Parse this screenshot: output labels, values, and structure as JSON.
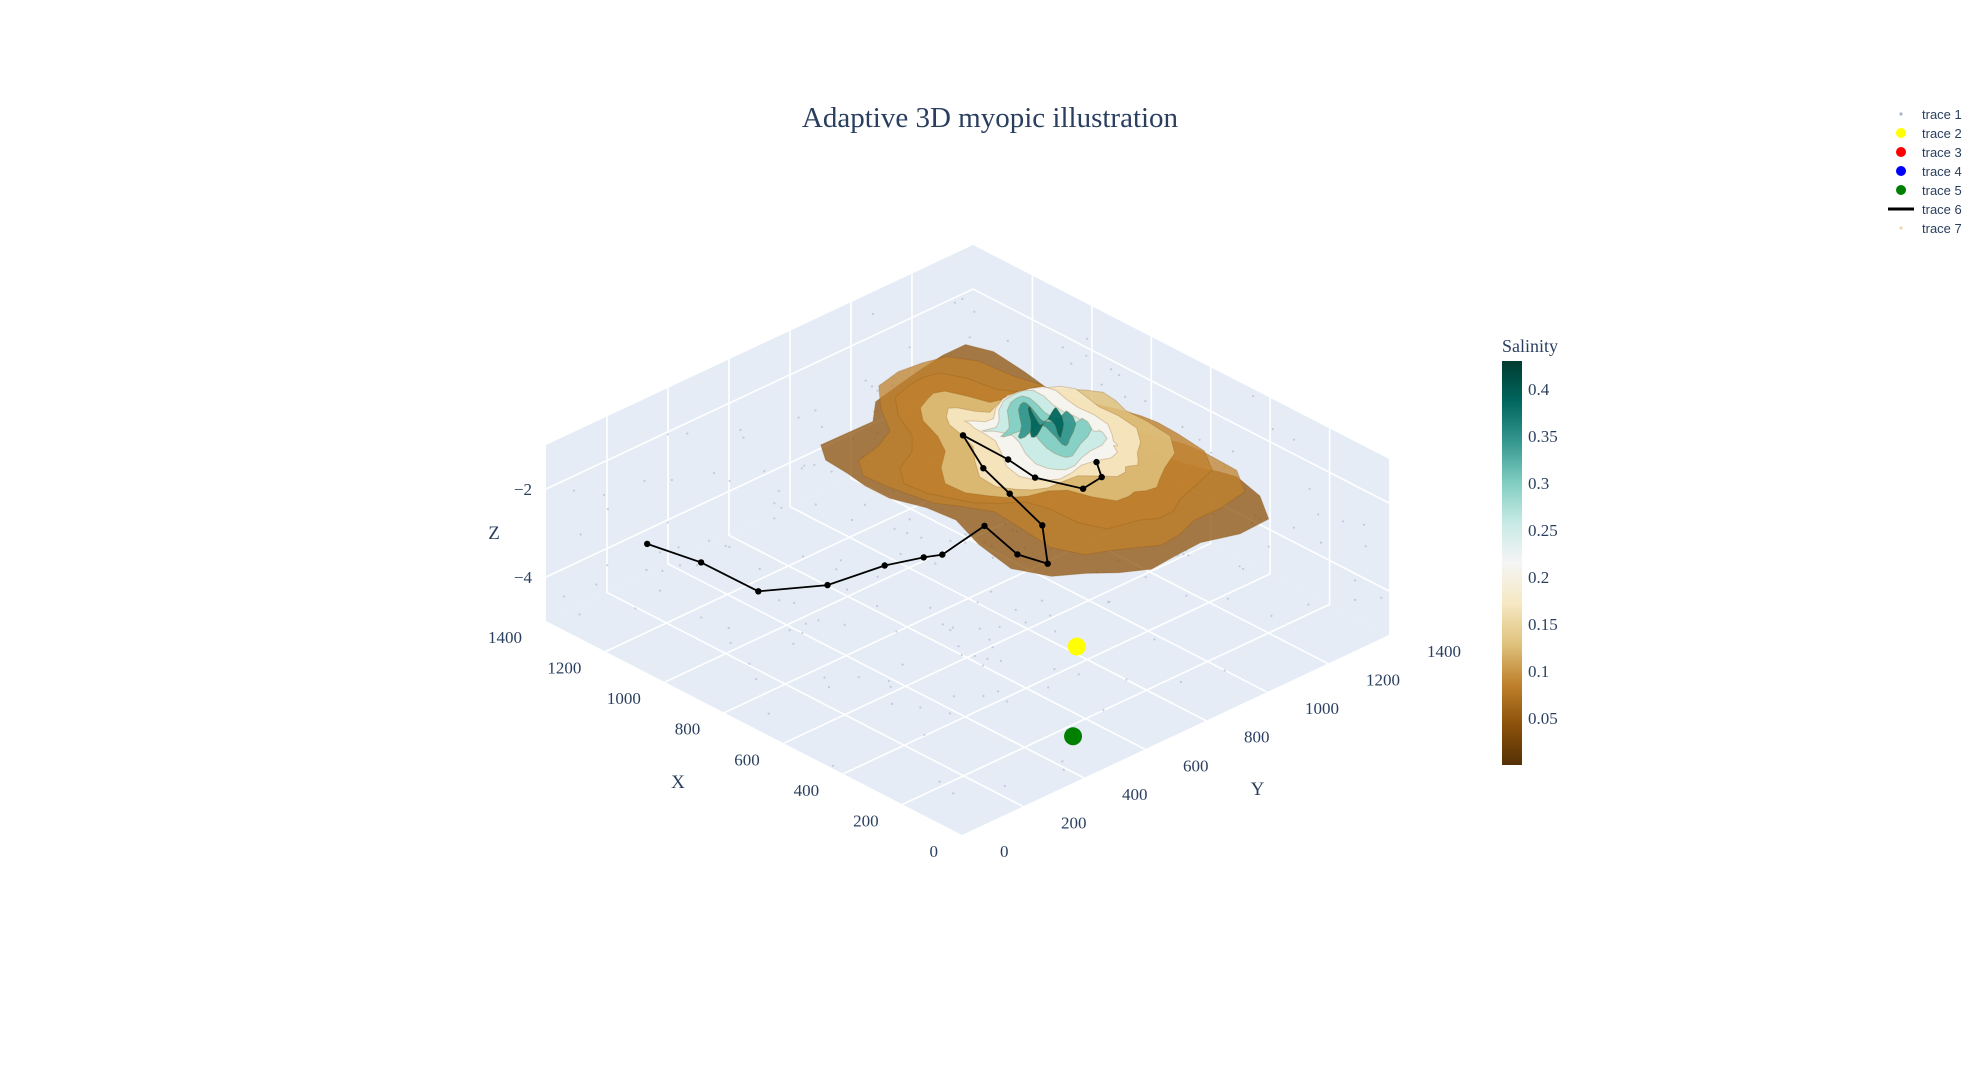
{
  "chart_data": {
    "type": "scatter3d",
    "title": "Adaptive 3D myopic illustration",
    "axes": {
      "x": {
        "label": "X",
        "ticks": [
          "0",
          "200",
          "400",
          "600",
          "800",
          "1000",
          "1200",
          "1400"
        ],
        "range": [
          0,
          1400
        ]
      },
      "y": {
        "label": "Y",
        "ticks": [
          "0",
          "200",
          "400",
          "600",
          "800",
          "1000",
          "1200",
          "1400"
        ],
        "range": [
          0,
          1400
        ]
      },
      "z": {
        "label": "Z",
        "ticks": [
          "−4",
          "−2"
        ],
        "range": [
          -5,
          -1
        ]
      }
    },
    "colorbar": {
      "title": "Salinity",
      "ticks": [
        "0.05",
        "0.1",
        "0.15",
        "0.2",
        "0.25",
        "0.3",
        "0.35",
        "0.4"
      ],
      "range": [
        0,
        0.43
      ],
      "colors": [
        "#543005",
        "#8c510a",
        "#bf812d",
        "#dfc27d",
        "#f6e8c3",
        "#f5f5f5",
        "#c7eae5",
        "#80cdc1",
        "#35978f",
        "#01665e",
        "#003c30"
      ]
    },
    "legend": {
      "position": "top-right",
      "items": [
        {
          "name": "trace 1",
          "symbol": "dot",
          "color": "#aab4c8"
        },
        {
          "name": "trace 2",
          "symbol": "marker",
          "color": "#ffff00"
        },
        {
          "name": "trace 3",
          "symbol": "marker",
          "color": "#ff0000"
        },
        {
          "name": "trace 4",
          "symbol": "marker",
          "color": "#0000ff"
        },
        {
          "name": "trace 5",
          "symbol": "marker",
          "color": "#008000"
        },
        {
          "name": "trace 6",
          "symbol": "line",
          "color": "#000000"
        },
        {
          "name": "trace 7",
          "symbol": "dot",
          "color": "#f0d8b0"
        }
      ]
    },
    "trace6_path": [
      [
        1080,
        20,
        -2.2
      ],
      [
        960,
        80,
        -2.4
      ],
      [
        860,
        170,
        -3.0
      ],
      [
        740,
        280,
        -2.8
      ],
      [
        640,
        370,
        -2.3
      ],
      [
        560,
        420,
        -2.0
      ],
      [
        600,
        520,
        -2.4
      ],
      [
        540,
        600,
        -1.8
      ],
      [
        450,
        620,
        -2.2
      ],
      [
        430,
        700,
        -2.6
      ],
      [
        510,
        760,
        -2.2
      ],
      [
        640,
        780,
        -2.0
      ],
      [
        770,
        820,
        -2.0
      ],
      [
        900,
        880,
        -1.9
      ],
      [
        820,
        950,
        -2.4
      ],
      [
        760,
        980,
        -2.7
      ],
      [
        660,
        1040,
        -2.8
      ],
      [
        700,
        1140,
        -3.0
      ],
      [
        820,
        1240,
        -3.4
      ]
    ],
    "trace2_point": [
      250,
      620,
      -3.6
    ],
    "trace5_point": [
      160,
      520,
      -5.0
    ],
    "surface": {
      "x_range": [
        300,
        1400
      ],
      "y_range": [
        550,
        1400
      ],
      "note": "salinity bowl, peak near x=900, y=1150"
    }
  }
}
